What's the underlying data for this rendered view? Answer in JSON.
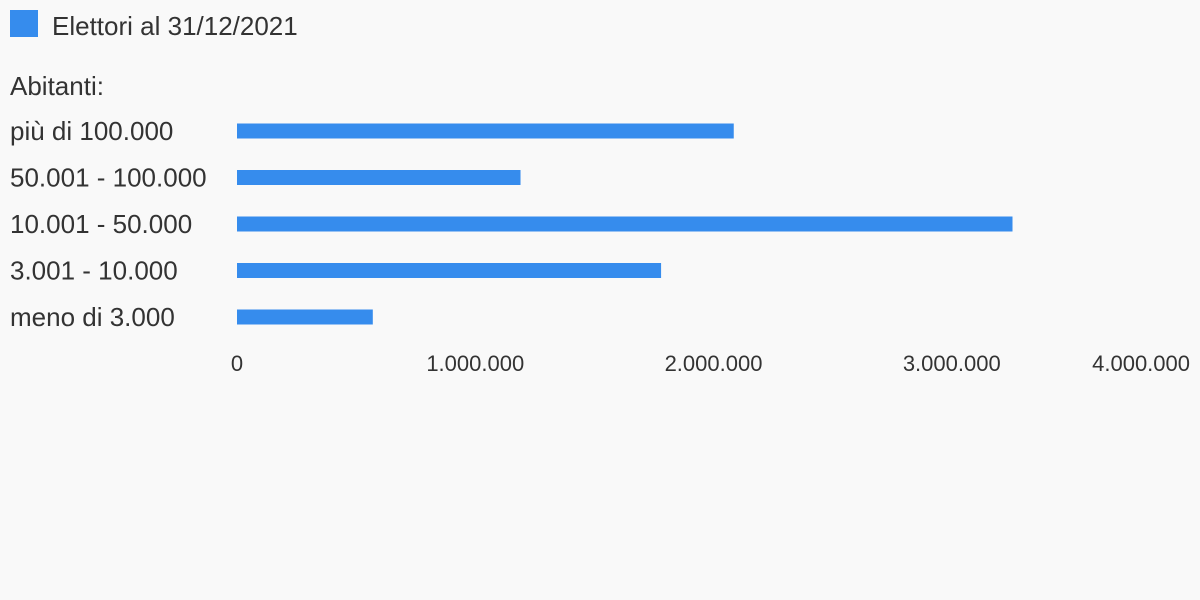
{
  "chart_data": {
    "type": "bar",
    "orientation": "horizontal",
    "category_group_label": "Abitanti:",
    "categories": [
      "più di 100.000",
      "50.001 - 100.000",
      "10.001 - 50.000",
      "3.001 - 10.000",
      "meno di 3.000"
    ],
    "series": [
      {
        "name": "Elettori al 31/12/2021",
        "values": [
          2085000,
          1190000,
          3255000,
          1780000,
          570000
        ],
        "color": "#368ced"
      }
    ],
    "xlim": [
      0,
      4000000
    ],
    "x_ticks": [
      0,
      1000000,
      2000000,
      3000000,
      4000000
    ],
    "x_tick_labels": [
      "0",
      "1.000.000",
      "2.000.000",
      "3.000.000",
      "4.000.000"
    ],
    "legend_position": "top-left",
    "grid": false
  }
}
